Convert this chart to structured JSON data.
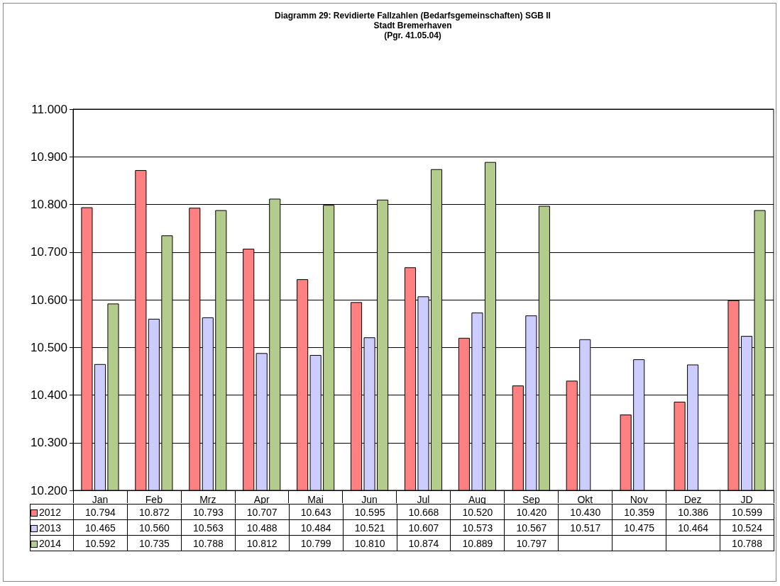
{
  "chart_data": {
    "type": "bar",
    "title": "Diagramm 29: Revidierte Fallzahlen (Bedarfsgemeinschaften) SGB II\nStadt Bremerhaven\n(Pgr. 41.05.04)",
    "categories": [
      "Jan",
      "Feb",
      "Mrz",
      "Apr",
      "Mai",
      "Jun",
      "Jul",
      "Aug",
      "Sep",
      "Okt",
      "Nov",
      "Dez",
      "JD"
    ],
    "series": [
      {
        "name": "2012",
        "color": "#ff8080",
        "values": [
          10794,
          10872,
          10793,
          10707,
          10643,
          10595,
          10668,
          10520,
          10420,
          10430,
          10359,
          10386,
          10599
        ],
        "value_labels": [
          "10.794",
          "10.872",
          "10.793",
          "10.707",
          "10.643",
          "10.595",
          "10.668",
          "10.520",
          "10.420",
          "10.430",
          "10.359",
          "10.386",
          "10.599"
        ]
      },
      {
        "name": "2013",
        "color": "#ccccff",
        "values": [
          10465,
          10560,
          10563,
          10488,
          10484,
          10521,
          10607,
          10573,
          10567,
          10517,
          10475,
          10464,
          10524
        ],
        "value_labels": [
          "10.465",
          "10.560",
          "10.563",
          "10.488",
          "10.484",
          "10.521",
          "10.607",
          "10.573",
          "10.567",
          "10.517",
          "10.475",
          "10.464",
          "10.524"
        ]
      },
      {
        "name": "2014",
        "color": "#b3cc8c",
        "values": [
          10592,
          10735,
          10788,
          10812,
          10799,
          10810,
          10874,
          10889,
          10797,
          null,
          null,
          null,
          10788
        ],
        "value_labels": [
          "10.592",
          "10.735",
          "10.788",
          "10.812",
          "10.799",
          "10.810",
          "10.874",
          "10.889",
          "10.797",
          null,
          null,
          null,
          "10.788"
        ]
      }
    ],
    "ylim": [
      10200,
      11000
    ],
    "yticks": [
      {
        "value": 10200,
        "label": "10.200"
      },
      {
        "value": 10300,
        "label": "10.300"
      },
      {
        "value": 10400,
        "label": "10.400"
      },
      {
        "value": 10500,
        "label": "10.500"
      },
      {
        "value": 10600,
        "label": "10.600"
      },
      {
        "value": 10700,
        "label": "10.700"
      },
      {
        "value": 10800,
        "label": "10.800"
      },
      {
        "value": 10900,
        "label": "10.900"
      },
      {
        "value": 11000,
        "label": "11.000"
      }
    ],
    "grid": "y",
    "legend": "bottom left"
  }
}
